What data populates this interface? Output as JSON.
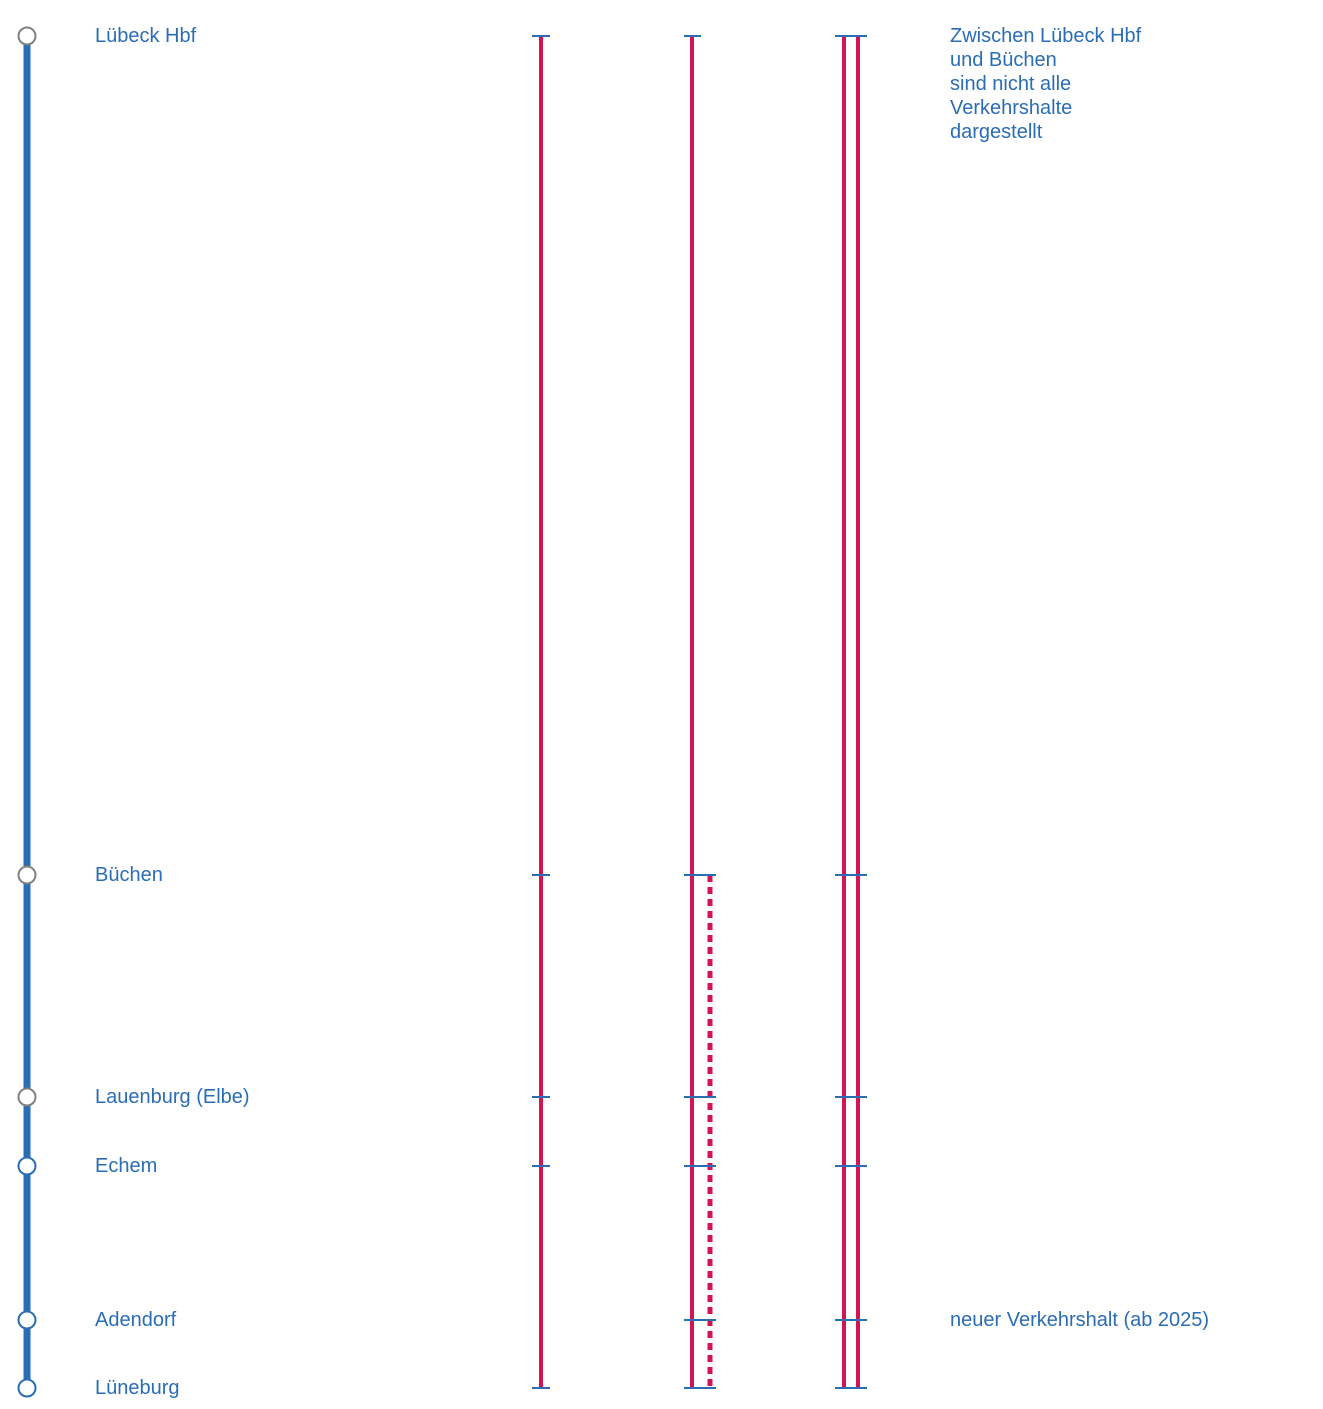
{
  "colors": {
    "line": "#2a6db5",
    "service": "#d4144e",
    "station_gray": "#808080",
    "station_blue": "#2a6db5"
  },
  "stations": [
    {
      "id": "luebeck",
      "name": "Lübeck Hbf",
      "marker": "gray"
    },
    {
      "id": "buechen",
      "name": "Büchen",
      "marker": "gray"
    },
    {
      "id": "lauenburg",
      "name": "Lauenburg (Elbe)",
      "marker": "gray"
    },
    {
      "id": "echem",
      "name": "Echem",
      "marker": "blue"
    },
    {
      "id": "adendorf",
      "name": "Adendorf",
      "marker": "blue"
    },
    {
      "id": "lueneburg",
      "name": "Lüneburg",
      "marker": "blue"
    }
  ],
  "notes": {
    "top": [
      "Zwischen Lübeck Hbf",
      "und Büchen",
      "sind nicht alle",
      "Verkehrshalte",
      "dargestellt"
    ],
    "adendorf": "neuer Verkehrshalt (ab 2025)"
  }
}
